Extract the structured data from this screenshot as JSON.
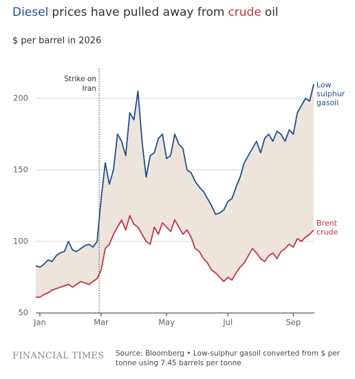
{
  "chart_data": {
    "type": "line",
    "title": [
      "Diesel",
      "prices have pulled away from",
      "crude",
      "oil"
    ],
    "subtitle": "$ per barrel in 2026",
    "annotation": "Strike on Iran",
    "source": "Source: Bloomberg • Low-sulphur gasoil converted from $ per tonne using 7.45 barrels per tonne",
    "brand": "FINANCIAL TIMES",
    "categories": [
      null,
      "Jan",
      null,
      null,
      null,
      null,
      null,
      null,
      null,
      null,
      null,
      null,
      null,
      null,
      null,
      null,
      "Mar",
      null,
      null,
      null,
      null,
      null,
      null,
      null,
      null,
      null,
      null,
      null,
      null,
      null,
      null,
      null,
      "May",
      null,
      null,
      null,
      null,
      null,
      null,
      null,
      null,
      null,
      null,
      null,
      null,
      null,
      null,
      "Jul",
      null,
      null,
      null,
      null,
      null,
      null,
      null,
      null,
      null,
      null,
      null,
      null,
      null,
      null,
      null,
      "Sep",
      null,
      null,
      null,
      null,
      null
    ],
    "series": [
      {
        "name": "Low sulphur gasoil",
        "color": "#1f4e8c",
        "values": [
          83,
          82,
          84,
          87,
          86,
          90,
          92,
          93,
          100,
          94,
          93,
          95,
          97,
          98,
          96,
          100,
          130,
          155,
          140,
          150,
          175,
          170,
          160,
          190,
          185,
          205,
          170,
          145,
          160,
          162,
          172,
          175,
          158,
          160,
          175,
          168,
          165,
          150,
          148,
          142,
          138,
          135,
          130,
          125,
          119,
          120,
          122,
          128,
          130,
          138,
          145,
          155,
          160,
          165,
          170,
          162,
          172,
          175,
          170,
          177,
          175,
          170,
          178,
          175,
          190,
          195,
          200,
          198,
          210
        ]
      },
      {
        "name": "Brent crude",
        "color": "#c0363f",
        "values": [
          61,
          61,
          63,
          64,
          66,
          67,
          68,
          69,
          70,
          68,
          70,
          72,
          71,
          70,
          72,
          74,
          80,
          95,
          98,
          105,
          110,
          115,
          108,
          118,
          112,
          110,
          105,
          100,
          98,
          110,
          105,
          113,
          110,
          107,
          115,
          110,
          105,
          108,
          103,
          95,
          93,
          88,
          85,
          80,
          78,
          75,
          72,
          75,
          73,
          78,
          82,
          85,
          90,
          95,
          92,
          88,
          86,
          90,
          92,
          88,
          93,
          95,
          98,
          96,
          102,
          100,
          103,
          105,
          108
        ]
      }
    ],
    "ylim": [
      50,
      220
    ],
    "yticks": [
      50,
      100,
      150,
      200
    ],
    "grid": true,
    "area_color": "#ede4dc"
  }
}
